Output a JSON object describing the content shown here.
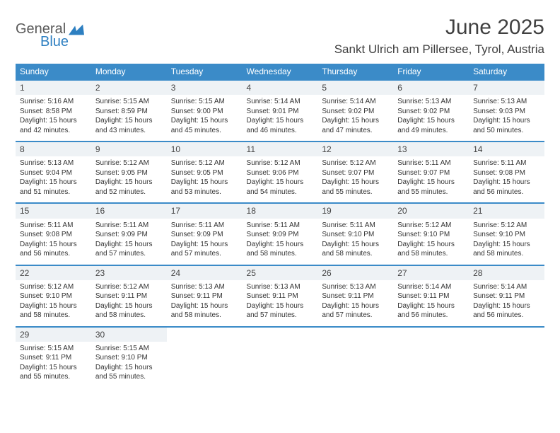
{
  "logo": {
    "word1": "General",
    "word2": "Blue"
  },
  "title": "June 2025",
  "location": "Sankt Ulrich am Pillersee, Tyrol, Austria",
  "colors": {
    "header_blue": "#3b8bc8",
    "logo_gray": "#5a5a5a",
    "logo_blue": "#2d7fc1",
    "text": "#333333",
    "daynum_bg": "#eef2f5"
  },
  "weekdays": [
    "Sunday",
    "Monday",
    "Tuesday",
    "Wednesday",
    "Thursday",
    "Friday",
    "Saturday"
  ],
  "weeks": [
    [
      {
        "n": "1",
        "sr": "5:16 AM",
        "ss": "8:58 PM",
        "dl": "Daylight: 15 hours and 42 minutes."
      },
      {
        "n": "2",
        "sr": "5:15 AM",
        "ss": "8:59 PM",
        "dl": "Daylight: 15 hours and 43 minutes."
      },
      {
        "n": "3",
        "sr": "5:15 AM",
        "ss": "9:00 PM",
        "dl": "Daylight: 15 hours and 45 minutes."
      },
      {
        "n": "4",
        "sr": "5:14 AM",
        "ss": "9:01 PM",
        "dl": "Daylight: 15 hours and 46 minutes."
      },
      {
        "n": "5",
        "sr": "5:14 AM",
        "ss": "9:02 PM",
        "dl": "Daylight: 15 hours and 47 minutes."
      },
      {
        "n": "6",
        "sr": "5:13 AM",
        "ss": "9:02 PM",
        "dl": "Daylight: 15 hours and 49 minutes."
      },
      {
        "n": "7",
        "sr": "5:13 AM",
        "ss": "9:03 PM",
        "dl": "Daylight: 15 hours and 50 minutes."
      }
    ],
    [
      {
        "n": "8",
        "sr": "5:13 AM",
        "ss": "9:04 PM",
        "dl": "Daylight: 15 hours and 51 minutes."
      },
      {
        "n": "9",
        "sr": "5:12 AM",
        "ss": "9:05 PM",
        "dl": "Daylight: 15 hours and 52 minutes."
      },
      {
        "n": "10",
        "sr": "5:12 AM",
        "ss": "9:05 PM",
        "dl": "Daylight: 15 hours and 53 minutes."
      },
      {
        "n": "11",
        "sr": "5:12 AM",
        "ss": "9:06 PM",
        "dl": "Daylight: 15 hours and 54 minutes."
      },
      {
        "n": "12",
        "sr": "5:12 AM",
        "ss": "9:07 PM",
        "dl": "Daylight: 15 hours and 55 minutes."
      },
      {
        "n": "13",
        "sr": "5:11 AM",
        "ss": "9:07 PM",
        "dl": "Daylight: 15 hours and 55 minutes."
      },
      {
        "n": "14",
        "sr": "5:11 AM",
        "ss": "9:08 PM",
        "dl": "Daylight: 15 hours and 56 minutes."
      }
    ],
    [
      {
        "n": "15",
        "sr": "5:11 AM",
        "ss": "9:08 PM",
        "dl": "Daylight: 15 hours and 56 minutes."
      },
      {
        "n": "16",
        "sr": "5:11 AM",
        "ss": "9:09 PM",
        "dl": "Daylight: 15 hours and 57 minutes."
      },
      {
        "n": "17",
        "sr": "5:11 AM",
        "ss": "9:09 PM",
        "dl": "Daylight: 15 hours and 57 minutes."
      },
      {
        "n": "18",
        "sr": "5:11 AM",
        "ss": "9:09 PM",
        "dl": "Daylight: 15 hours and 58 minutes."
      },
      {
        "n": "19",
        "sr": "5:11 AM",
        "ss": "9:10 PM",
        "dl": "Daylight: 15 hours and 58 minutes."
      },
      {
        "n": "20",
        "sr": "5:12 AM",
        "ss": "9:10 PM",
        "dl": "Daylight: 15 hours and 58 minutes."
      },
      {
        "n": "21",
        "sr": "5:12 AM",
        "ss": "9:10 PM",
        "dl": "Daylight: 15 hours and 58 minutes."
      }
    ],
    [
      {
        "n": "22",
        "sr": "5:12 AM",
        "ss": "9:10 PM",
        "dl": "Daylight: 15 hours and 58 minutes."
      },
      {
        "n": "23",
        "sr": "5:12 AM",
        "ss": "9:11 PM",
        "dl": "Daylight: 15 hours and 58 minutes."
      },
      {
        "n": "24",
        "sr": "5:13 AM",
        "ss": "9:11 PM",
        "dl": "Daylight: 15 hours and 58 minutes."
      },
      {
        "n": "25",
        "sr": "5:13 AM",
        "ss": "9:11 PM",
        "dl": "Daylight: 15 hours and 57 minutes."
      },
      {
        "n": "26",
        "sr": "5:13 AM",
        "ss": "9:11 PM",
        "dl": "Daylight: 15 hours and 57 minutes."
      },
      {
        "n": "27",
        "sr": "5:14 AM",
        "ss": "9:11 PM",
        "dl": "Daylight: 15 hours and 56 minutes."
      },
      {
        "n": "28",
        "sr": "5:14 AM",
        "ss": "9:11 PM",
        "dl": "Daylight: 15 hours and 56 minutes."
      }
    ],
    [
      {
        "n": "29",
        "sr": "5:15 AM",
        "ss": "9:11 PM",
        "dl": "Daylight: 15 hours and 55 minutes."
      },
      {
        "n": "30",
        "sr": "5:15 AM",
        "ss": "9:10 PM",
        "dl": "Daylight: 15 hours and 55 minutes."
      },
      null,
      null,
      null,
      null,
      null
    ]
  ],
  "labels": {
    "sunrise": "Sunrise: ",
    "sunset": "Sunset: "
  }
}
